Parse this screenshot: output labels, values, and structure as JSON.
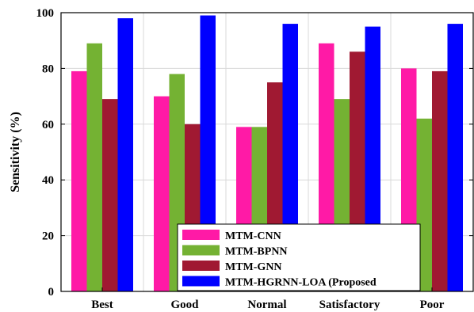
{
  "chart_data": {
    "type": "bar",
    "title": "",
    "xlabel": "",
    "ylabel": "Sensitivity (%)",
    "ylim": [
      0,
      100
    ],
    "yticks": [
      0,
      20,
      40,
      60,
      80,
      100
    ],
    "grid": true,
    "legend_position": "bottom-center",
    "categories": [
      "Best",
      "Good",
      "Normal",
      "Satisfactory",
      "Poor"
    ],
    "series": [
      {
        "name": "MTM-CNN",
        "color": "#ff1aa6",
        "values": [
          79,
          70,
          59,
          89,
          80
        ]
      },
      {
        "name": "MTM-BPNN",
        "color": "#74b233",
        "values": [
          89,
          78,
          59,
          69,
          62
        ]
      },
      {
        "name": "MTM-GNN",
        "color": "#a01932",
        "values": [
          69,
          60,
          75,
          86,
          79
        ]
      },
      {
        "name": "MTM-HGRNN-LOA (Proposed",
        "color": "#0000ff",
        "values": [
          98,
          99,
          96,
          95,
          96
        ]
      }
    ]
  }
}
